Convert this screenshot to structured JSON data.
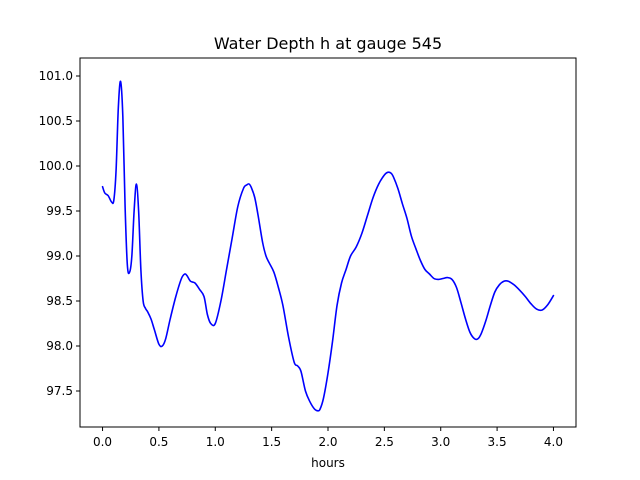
{
  "chart_data": {
    "type": "line",
    "title": "Water Depth h at gauge 545",
    "xlabel": "hours",
    "ylabel": "",
    "xlim": [
      -0.2,
      4.2
    ],
    "ylim": [
      97.1,
      101.2
    ],
    "grid": false,
    "legend": "none",
    "x_ticks": [
      0.0,
      0.5,
      1.0,
      1.5,
      2.0,
      2.5,
      3.0,
      3.5,
      4.0
    ],
    "x_tick_labels": [
      "0.0",
      "0.5",
      "1.0",
      "1.5",
      "2.0",
      "2.5",
      "3.0",
      "3.5",
      "4.0"
    ],
    "y_ticks": [
      97.5,
      98.0,
      98.5,
      99.0,
      99.5,
      100.0,
      100.5,
      101.0
    ],
    "y_tick_labels": [
      "97.5",
      "98.0",
      "98.5",
      "99.0",
      "99.5",
      "100.0",
      "100.5",
      "101.0"
    ],
    "series": [
      {
        "color": "#0000ff",
        "x": [
          0.0,
          0.02,
          0.05,
          0.08,
          0.1,
          0.12,
          0.14,
          0.16,
          0.18,
          0.2,
          0.22,
          0.24,
          0.26,
          0.28,
          0.3,
          0.32,
          0.34,
          0.36,
          0.38,
          0.4,
          0.43,
          0.46,
          0.5,
          0.53,
          0.56,
          0.6,
          0.65,
          0.7,
          0.73,
          0.75,
          0.78,
          0.82,
          0.86,
          0.9,
          0.93,
          0.96,
          1.0,
          1.05,
          1.1,
          1.15,
          1.2,
          1.25,
          1.28,
          1.3,
          1.32,
          1.35,
          1.38,
          1.42,
          1.45,
          1.48,
          1.52,
          1.56,
          1.6,
          1.65,
          1.7,
          1.73,
          1.76,
          1.8,
          1.84,
          1.88,
          1.91,
          1.93,
          1.96,
          2.0,
          2.04,
          2.08,
          2.12,
          2.16,
          2.2,
          2.25,
          2.3,
          2.35,
          2.4,
          2.45,
          2.5,
          2.53,
          2.56,
          2.58,
          2.62,
          2.66,
          2.7,
          2.74,
          2.78,
          2.82,
          2.86,
          2.9,
          2.94,
          2.98,
          3.02,
          3.06,
          3.1,
          3.14,
          3.18,
          3.22,
          3.26,
          3.3,
          3.33,
          3.36,
          3.4,
          3.44,
          3.48,
          3.52,
          3.56,
          3.6,
          3.65,
          3.7,
          3.75,
          3.8,
          3.85,
          3.9,
          3.95,
          4.0
        ],
        "y": [
          99.77,
          99.7,
          99.67,
          99.6,
          99.62,
          99.95,
          100.65,
          100.94,
          100.55,
          99.55,
          98.9,
          98.82,
          99.0,
          99.5,
          99.8,
          99.5,
          98.85,
          98.5,
          98.42,
          98.38,
          98.3,
          98.18,
          98.02,
          98.0,
          98.08,
          98.3,
          98.55,
          98.75,
          98.8,
          98.78,
          98.72,
          98.7,
          98.63,
          98.55,
          98.35,
          98.25,
          98.25,
          98.5,
          98.85,
          99.2,
          99.55,
          99.75,
          99.79,
          99.8,
          99.76,
          99.65,
          99.45,
          99.15,
          99.0,
          98.92,
          98.82,
          98.65,
          98.45,
          98.1,
          97.82,
          97.78,
          97.72,
          97.5,
          97.38,
          97.3,
          97.28,
          97.3,
          97.42,
          97.7,
          98.05,
          98.45,
          98.7,
          98.85,
          99.0,
          99.1,
          99.25,
          99.45,
          99.65,
          99.8,
          99.9,
          99.93,
          99.92,
          99.88,
          99.75,
          99.58,
          99.42,
          99.22,
          99.08,
          98.95,
          98.85,
          98.8,
          98.75,
          98.74,
          98.75,
          98.76,
          98.74,
          98.65,
          98.48,
          98.3,
          98.15,
          98.08,
          98.08,
          98.14,
          98.28,
          98.45,
          98.6,
          98.68,
          98.72,
          98.72,
          98.68,
          98.62,
          98.55,
          98.47,
          98.41,
          98.4,
          98.46,
          98.56
        ]
      }
    ]
  }
}
